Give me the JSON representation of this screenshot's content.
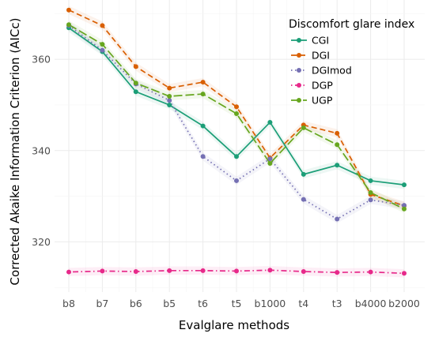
{
  "chart_data": {
    "type": "line",
    "xlabel": "Evalglare methods",
    "ylabel": "Corrected Akaike Information Criterion (AICc)",
    "categories": [
      "b8",
      "b7",
      "b6",
      "b5",
      "t6",
      "t5",
      "b1000",
      "t4",
      "t3",
      "b4000",
      "b2000"
    ],
    "y_ticks": [
      320,
      340,
      360
    ],
    "ylim": [
      309,
      373
    ],
    "grid": true,
    "legend": {
      "title": "Discomfort glare index",
      "placement": "top-right"
    },
    "series": [
      {
        "name": "CGI",
        "color": "#1b9e77",
        "dash": "solid",
        "values": [
          366.9,
          361.7,
          352.9,
          350.0,
          345.4,
          338.7,
          346.2,
          334.8,
          336.8,
          333.4,
          332.5
        ]
      },
      {
        "name": "DGI",
        "color": "#d95f02",
        "dash": "dashed",
        "values": [
          370.8,
          367.4,
          358.4,
          353.7,
          355.0,
          349.6,
          338.4,
          345.6,
          343.8,
          330.4,
          327.9
        ]
      },
      {
        "name": "DGImod",
        "color": "#7570b3",
        "dash": "dotted",
        "values": [
          367.4,
          362.0,
          354.6,
          351.0,
          338.7,
          333.4,
          338.2,
          329.3,
          325.0,
          329.2,
          328.0
        ]
      },
      {
        "name": "DGP",
        "color": "#e7298a",
        "dash": "dotdash",
        "values": [
          313.4,
          313.6,
          313.5,
          313.7,
          313.7,
          313.6,
          313.8,
          313.5,
          313.3,
          313.4,
          313.1
        ]
      },
      {
        "name": "UGP",
        "color": "#66a61e",
        "dash": "longdash",
        "values": [
          367.6,
          363.3,
          354.8,
          351.9,
          352.4,
          348.1,
          337.2,
          345.0,
          341.3,
          330.8,
          327.2
        ]
      }
    ]
  }
}
